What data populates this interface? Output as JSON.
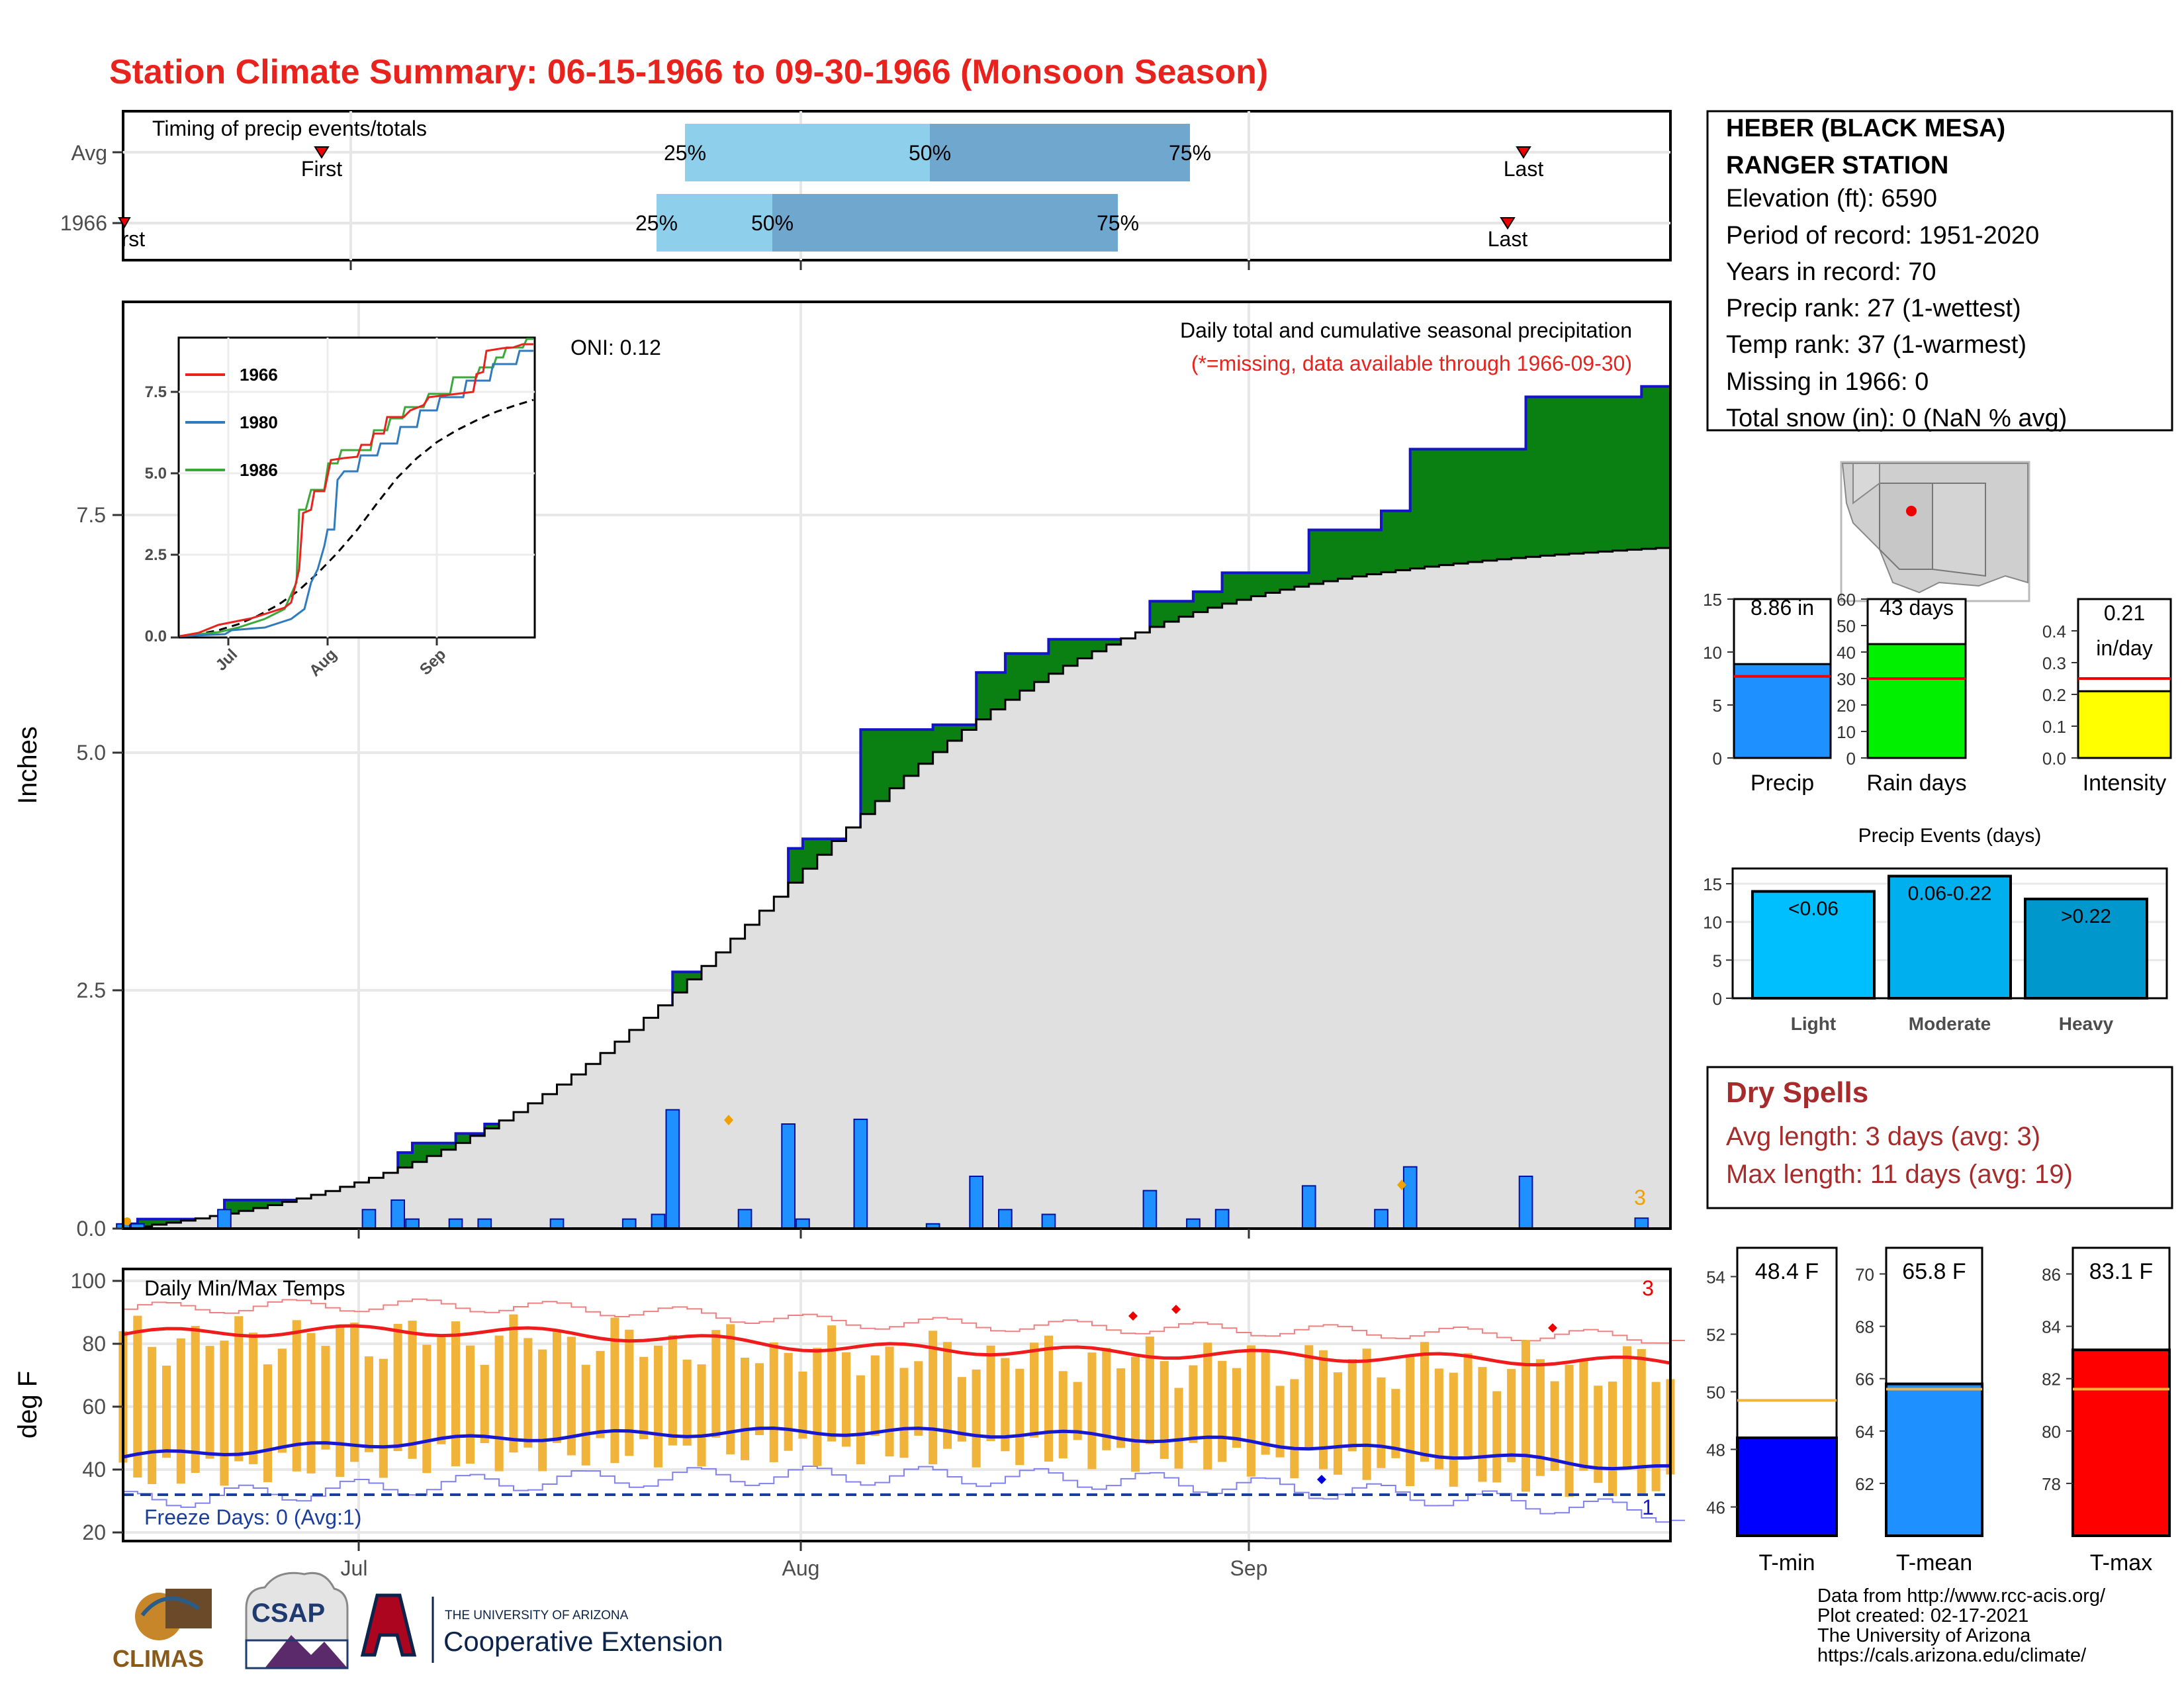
{
  "title": "Station Climate Summary: 06-15-1966 to 09-30-1966 (Monsoon Season)",
  "colors": {
    "title": "#e8231e",
    "cum_obs": "#0a8012",
    "cum_outline": "#1414c8",
    "cum_avg": "#e0e0e0",
    "daily_bar": "#1e90ff",
    "temp_bar": "#f0b43a",
    "tmax_line": "#ee1c1c",
    "tmin_line": "#1818d0",
    "dry_text": "#a82b2b",
    "q_light": "#8ecfeb",
    "q_dark": "#6fa7cf"
  },
  "timing": {
    "label": "Timing of precip events/totals",
    "rows": [
      {
        "name": "Avg",
        "first_label": "First",
        "last_label": "Last",
        "q25": "25%",
        "q50": "50%",
        "q75": "75%"
      },
      {
        "name": "1966",
        "first_label": "First",
        "last_label": "Last",
        "q25": "25%",
        "q50": "50%",
        "q75": "75%"
      }
    ]
  },
  "main_panel": {
    "ylabel": "Inches",
    "yticks": [
      "0.0",
      "2.5",
      "5.0",
      "7.5"
    ],
    "oni": "ONI: 0.12",
    "legend1": "Daily total and cumulative seasonal precipitation",
    "legend2": "(*=missing, data available through 1966-09-30)",
    "corner_count": "3"
  },
  "inset": {
    "yticks": [
      "0.0",
      "2.5",
      "5.0",
      "7.5"
    ],
    "xticks": [
      "Jul",
      "Aug",
      "Sep"
    ],
    "legend": [
      {
        "name": "1966",
        "color": "#e8231e"
      },
      {
        "name": "1980",
        "color": "#2f7bbd"
      },
      {
        "name": "1986",
        "color": "#3aa83a"
      }
    ]
  },
  "temp_panel": {
    "ylabel": "deg F",
    "yticks": [
      "20",
      "40",
      "60",
      "80",
      "100"
    ],
    "title": "Daily Min/Max Temps",
    "freeze": "Freeze Days: 0 (Avg:1)",
    "corner_top": "3",
    "corner_bottom": "1",
    "xticks": [
      "Jul",
      "Aug",
      "Sep"
    ]
  },
  "station": {
    "name1": "HEBER (BLACK MESA)",
    "name2": "RANGER STATION",
    "lines": [
      "Elevation (ft): 6590",
      "Period of record: 1951-2020",
      "Years in record: 70",
      "Precip rank: 27 (1-wettest)",
      "Temp rank: 37 (1-warmest)",
      "Missing in 1966: 0",
      "Total snow (in): 0 (NaN % avg)"
    ]
  },
  "summary_bars": [
    {
      "label": "Precip",
      "value_label": "8.86 in",
      "value": 8.86,
      "avg": 7.7,
      "ymax": 15,
      "yticks": [
        "0",
        "5",
        "10",
        "15"
      ],
      "color": "#1e90ff"
    },
    {
      "label": "Rain days",
      "value_label": "43 days",
      "value": 43,
      "avg": 30,
      "ymax": 60,
      "yticks": [
        "0",
        "10",
        "20",
        "30",
        "40",
        "50",
        "60"
      ],
      "color": "#00f000"
    },
    {
      "label": "Intensity",
      "value_label1": "0.21",
      "value_label2": "in/day",
      "value": 0.21,
      "avg": 0.25,
      "ymax": 0.5,
      "yticks": [
        "0.0",
        "0.1",
        "0.2",
        "0.3",
        "0.4"
      ],
      "color": "#ffff00"
    }
  ],
  "events": {
    "title": "Precip Events (days)",
    "yticks": [
      "0",
      "5",
      "10",
      "15"
    ],
    "bars": [
      {
        "label": "Light",
        "value_label": "<0.06",
        "value": 14,
        "color": "#00bfff"
      },
      {
        "label": "Moderate",
        "value_label": "0.06-0.22",
        "value": 16,
        "color": "#00b0ee"
      },
      {
        "label": "Heavy",
        "value_label": ">0.22",
        "value": 13,
        "color": "#0098cc"
      }
    ]
  },
  "dry": {
    "title": "Dry Spells",
    "avg": "Avg length: 3 days (avg: 3)",
    "max": "Max length: 11 days (avg: 19)"
  },
  "temp_bars": [
    {
      "label": "T-min",
      "value_label": "48.4 F",
      "value": 48.4,
      "avg": 49.7,
      "ymin": 45,
      "ymax": 55,
      "yticks": [
        "46",
        "48",
        "50",
        "52",
        "54"
      ],
      "color": "#0000ff"
    },
    {
      "label": "T-mean",
      "value_label": "65.8 F",
      "value": 65.8,
      "avg": 65.6,
      "ymin": 60,
      "ymax": 71,
      "yticks": [
        "62",
        "64",
        "66",
        "68",
        "70"
      ],
      "color": "#1e90ff"
    },
    {
      "label": "T-max",
      "value_label": "83.1 F",
      "value": 83.1,
      "avg": 81.6,
      "ymin": 76,
      "ymax": 87,
      "yticks": [
        "78",
        "80",
        "82",
        "84",
        "86"
      ],
      "color": "#ff0000"
    }
  ],
  "credits": [
    "Data from http://www.rcc-acis.org/",
    "Plot created: 02-17-2021",
    "The University of Arizona",
    "https://cals.arizona.edu/climate/"
  ],
  "logos": {
    "climas": "CLIMAS",
    "csap": "CSAP",
    "ua_small": "THE UNIVERSITY OF ARIZONA",
    "ua_big": "Cooperative Extension"
  },
  "chart_data": [
    {
      "type": "area",
      "x_range": [
        "1966-06-15",
        "1966-09-30"
      ],
      "ylim": [
        0,
        9.5
      ],
      "series": [
        {
          "name": "1966",
          "x": [
            "06-15",
            "06-16",
            "06-22",
            "06-25",
            "07-02",
            "07-04",
            "07-05",
            "07-08",
            "07-10",
            "07-15",
            "07-20",
            "07-22",
            "07-23",
            "07-28",
            "07-30",
            "07-31",
            "08-01",
            "08-02",
            "08-05",
            "08-10",
            "08-13",
            "08-15",
            "08-18",
            "08-25",
            "08-28",
            "08-30",
            "09-05",
            "09-10",
            "09-12",
            "09-20",
            "09-28",
            "09-30"
          ],
          "values": [
            0.05,
            0.1,
            0.3,
            0.3,
            0.5,
            0.8,
            0.9,
            1.0,
            1.1,
            1.2,
            1.3,
            1.45,
            2.7,
            2.9,
            2.9,
            4.0,
            4.1,
            4.1,
            5.25,
            5.3,
            5.85,
            6.05,
            6.2,
            6.6,
            6.7,
            6.9,
            7.35,
            7.55,
            8.2,
            8.75,
            8.86,
            8.86
          ]
        }
      ],
      "avg_end": 7.2
    },
    {
      "type": "line",
      "title": "Daily Min/Max Temps",
      "x_range": [
        "1966-06-15",
        "1966-09-30"
      ],
      "ylim": [
        18,
        102
      ],
      "series": [
        {
          "name": "avg-max",
          "values_start": 83,
          "values_end": 74
        },
        {
          "name": "avg-min",
          "values_start": 44,
          "values_end": 40
        }
      ]
    }
  ]
}
